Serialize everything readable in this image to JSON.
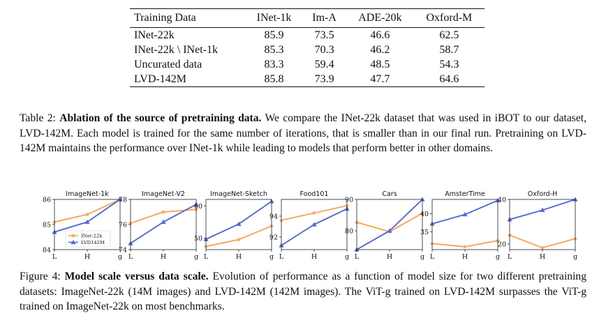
{
  "table": {
    "headers": [
      "Training Data",
      "INet-1k",
      "Im-A",
      "ADE-20k",
      "Oxford-M"
    ],
    "rows": [
      [
        "INet-22k",
        "85.9",
        "73.5",
        "46.6",
        "62.5"
      ],
      [
        "INet-22k \\ INet-1k",
        "85.3",
        "70.3",
        "46.2",
        "58.7"
      ],
      [
        "Uncurated data",
        "83.3",
        "59.4",
        "48.5",
        "54.3"
      ],
      [
        "LVD-142M",
        "85.8",
        "73.9",
        "47.7",
        "64.6"
      ]
    ]
  },
  "table_caption": {
    "label": "Table 2: ",
    "bold": "Ablation of the source of pretraining data.",
    "text": " We compare the INet-22k dataset that was used in iBOT to our dataset, LVD-142M. Each model is trained for the same number of iterations, that is smaller than in our final run. Pretraining on LVD-142M maintains the performance over INet-1k while leading to models that perform better in other domains."
  },
  "figure_caption": {
    "label": "Figure 4: ",
    "bold": "Model scale versus data scale.",
    "text": " Evolution of performance as a function of model size for two different pretraining datasets: ImageNet-22k (14M images) and LVD-142M (142M images). The ViT-g trained on LVD-142M surpasses the ViT-g trained on ImageNet-22k on most benchmarks."
  },
  "colors": {
    "inet22k": "#f5a55a",
    "lvd142m": "#5269d6"
  },
  "chart_data": [
    {
      "type": "line",
      "title": "ImageNet-1k",
      "categories": [
        "L",
        "H",
        "g"
      ],
      "ylim": [
        84,
        86
      ],
      "yticks": [
        "84",
        "85",
        "86"
      ],
      "legend": "lower-right",
      "series": [
        {
          "name": "INet-22k",
          "values": [
            85.1,
            85.4,
            86.0
          ]
        },
        {
          "name": "LVD142M",
          "values": [
            84.7,
            85.1,
            86.0
          ]
        }
      ]
    },
    {
      "type": "line",
      "title": "ImageNet-V2",
      "categories": [
        "L",
        "H",
        "g"
      ],
      "ylim": [
        74,
        78
      ],
      "yticks": [
        "74",
        "76",
        "78"
      ],
      "series": [
        {
          "name": "INet-22k",
          "values": [
            76.1,
            77.0,
            77.2
          ]
        },
        {
          "name": "LVD142M",
          "values": [
            74.5,
            76.2,
            77.6
          ]
        }
      ]
    },
    {
      "type": "line",
      "title": "ImageNet-Sketch",
      "categories": [
        "L",
        "H",
        "g"
      ],
      "ylim": [
        46.5,
        62
      ],
      "yticks": [
        "50",
        "60"
      ],
      "series": [
        {
          "name": "INet-22k",
          "values": [
            47.5,
            49.6,
            53.8
          ]
        },
        {
          "name": "LVD142M",
          "values": [
            49.7,
            54.4,
            61.4
          ]
        }
      ]
    },
    {
      "type": "line",
      "title": "Food101",
      "categories": [
        "L",
        "H",
        "g"
      ],
      "ylim": [
        90.8,
        95.6
      ],
      "yticks": [
        "92",
        "94"
      ],
      "series": [
        {
          "name": "INet-22k",
          "values": [
            93.6,
            94.3,
            95.0
          ]
        },
        {
          "name": "LVD142M",
          "values": [
            91.2,
            93.2,
            94.7
          ]
        }
      ]
    },
    {
      "type": "line",
      "title": "Cars",
      "categories": [
        "L",
        "H",
        "g"
      ],
      "ylim": [
        74,
        90
      ],
      "yticks": [
        "80",
        "90"
      ],
      "series": [
        {
          "name": "INet-22k",
          "values": [
            82.7,
            79.7,
            85.6
          ]
        },
        {
          "name": "LVD142M",
          "values": [
            74.0,
            80.0,
            90.0
          ]
        }
      ]
    },
    {
      "type": "line",
      "title": "AmsterTime",
      "categories": [
        "L",
        "H",
        "g"
      ],
      "ylim": [
        30,
        44
      ],
      "yticks": [
        "35",
        "40"
      ],
      "series": [
        {
          "name": "INet-22k",
          "values": [
            31.7,
            30.8,
            32.5
          ]
        },
        {
          "name": "LVD142M",
          "values": [
            37.2,
            39.8,
            43.7
          ]
        }
      ]
    },
    {
      "type": "line",
      "title": "Oxford-H",
      "categories": [
        "L",
        "H",
        "g"
      ],
      "ylim": [
        17.5,
        40
      ],
      "yticks": [
        "20",
        "40"
      ],
      "series": [
        {
          "name": "INet-22k",
          "values": [
            24.0,
            18.3,
            22.4
          ]
        },
        {
          "name": "LVD142M",
          "values": [
            31.0,
            35.2,
            40.0
          ]
        }
      ]
    }
  ]
}
